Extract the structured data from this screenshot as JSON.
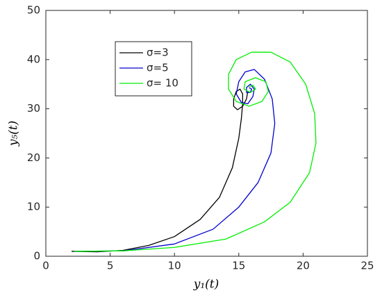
{
  "chart_data": {
    "type": "line",
    "xlabel": "y₁(t)",
    "ylabel": "y₅(t)",
    "xlim": [
      0,
      25
    ],
    "xticks": [
      0,
      5,
      10,
      15,
      20,
      25
    ],
    "ylim": [
      0,
      50
    ],
    "yticks": [
      0,
      10,
      20,
      30,
      40,
      50
    ],
    "series": [
      {
        "name": "σ=3",
        "color": "#000000",
        "x": [
          2.0,
          4,
          6,
          8,
          10,
          12,
          13.5,
          14.5,
          15,
          15.2,
          15.3,
          15.3,
          15.1,
          14.8,
          14.6,
          14.6,
          14.9,
          15.3,
          15.6,
          15.7
        ],
        "values": [
          1.0,
          0.9,
          1.2,
          2.2,
          4,
          7.5,
          12,
          18,
          24,
          28,
          31,
          33,
          34,
          33.5,
          32,
          30.5,
          29.8,
          30.5,
          32,
          33.5
        ]
      },
      {
        "name": "σ=5",
        "color": "#0000cc",
        "x": [
          2.2,
          6,
          10,
          13,
          15,
          16.5,
          17.5,
          17.8,
          17.6,
          17,
          16.2,
          15.5,
          15,
          14.8,
          15.2,
          15.7,
          16.1,
          16.2,
          15.9,
          15.6,
          15.6,
          15.9,
          16,
          15.8
        ],
        "values": [
          1,
          1.1,
          2.5,
          5.5,
          10,
          15,
          21,
          27,
          32,
          36,
          38,
          37.5,
          35.5,
          33,
          31.3,
          31,
          32.5,
          34,
          35,
          34.3,
          33.3,
          33.3,
          34,
          34.3
        ]
      },
      {
        "name": "σ= 10",
        "color": "#00ee00",
        "x": [
          2.2,
          6,
          10,
          14,
          17,
          19,
          20.5,
          21,
          20.9,
          20.2,
          19,
          17.5,
          16,
          14.8,
          14.2,
          14.2,
          14.8,
          15.8,
          16.8,
          17.3,
          17.1,
          16.3,
          15.5,
          15.4,
          15.9,
          16.3,
          16.1,
          15.8
        ],
        "values": [
          1,
          1.1,
          1.8,
          3.5,
          7,
          11,
          17,
          23,
          29,
          35,
          39.5,
          41.5,
          41.5,
          40,
          37,
          34,
          31.5,
          30.5,
          31.5,
          33.5,
          35.5,
          36.3,
          35.5,
          34,
          33.3,
          34,
          34.8,
          34.5
        ]
      }
    ]
  }
}
